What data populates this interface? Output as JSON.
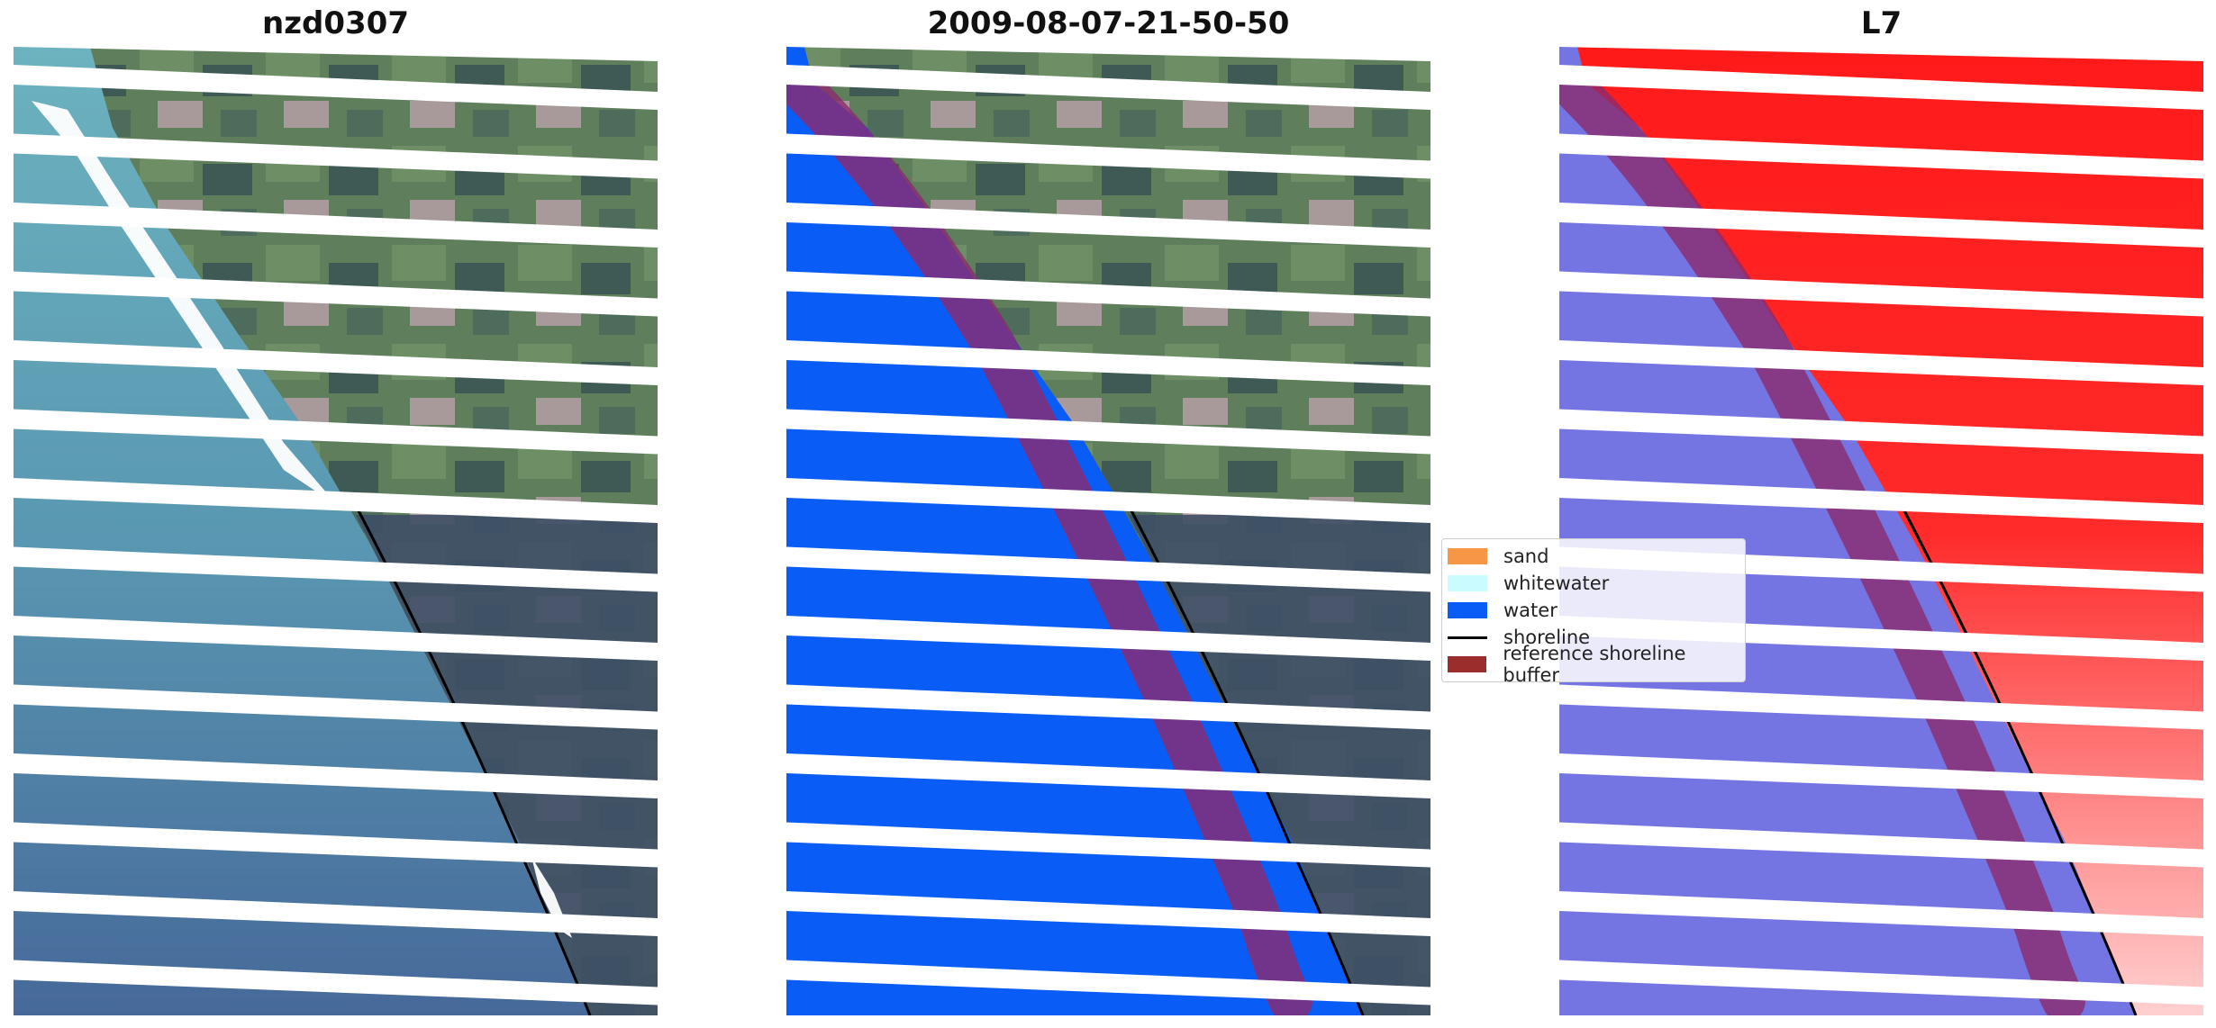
{
  "panels": [
    {
      "title": "nzd0307"
    },
    {
      "title": "2009-08-07-21-50-50"
    },
    {
      "title": "L7"
    }
  ],
  "legend": {
    "items": [
      {
        "label": "sand",
        "color": "#f79646",
        "kind": "patch"
      },
      {
        "label": "whitewater",
        "color": "#c9fbff",
        "kind": "patch"
      },
      {
        "label": "water",
        "color": "#0a5cf7",
        "kind": "patch"
      },
      {
        "label": "shoreline",
        "color": "#000000",
        "kind": "line"
      },
      {
        "label": "reference shoreline buffer",
        "color": "#9b2d2d",
        "kind": "patch"
      }
    ]
  },
  "colors": {
    "land_green": "#5d7a5a",
    "ocean_teal": "#5fa3b3",
    "ocean_deep": "#4a6e96",
    "water_class": "#0a5cf7",
    "buffer": "#8b2a6e",
    "index_red": "#ff1a1a",
    "index_blue": "#7070e0"
  }
}
